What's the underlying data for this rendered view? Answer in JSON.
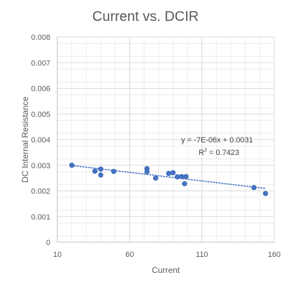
{
  "chart_data": {
    "type": "scatter",
    "title": "Current vs. DCIR",
    "xlabel": "Current",
    "ylabel": "DC Internal Resistance",
    "xlim": [
      10,
      160
    ],
    "ylim": [
      0,
      0.008
    ],
    "x_ticks": [
      "10",
      "60",
      "110",
      "160"
    ],
    "y_ticks": [
      "0",
      "0.001",
      "0.002",
      "0.003",
      "0.004",
      "0.005",
      "0.006",
      "0.007",
      "0.008"
    ],
    "grid": true,
    "marker_color": "#4472C4",
    "series": [
      {
        "points": [
          {
            "x": 20,
            "y": 0.003
          },
          {
            "x": 36,
            "y": 0.00277
          },
          {
            "x": 40,
            "y": 0.00285
          },
          {
            "x": 40,
            "y": 0.00262
          },
          {
            "x": 49,
            "y": 0.00276
          },
          {
            "x": 72,
            "y": 0.00287
          },
          {
            "x": 72,
            "y": 0.00275
          },
          {
            "x": 78,
            "y": 0.0025
          },
          {
            "x": 87,
            "y": 0.00268
          },
          {
            "x": 90,
            "y": 0.00271
          },
          {
            "x": 93,
            "y": 0.00255
          },
          {
            "x": 96,
            "y": 0.00256
          },
          {
            "x": 98,
            "y": 0.00228
          },
          {
            "x": 99,
            "y": 0.00256
          },
          {
            "x": 146,
            "y": 0.00213
          },
          {
            "x": 154,
            "y": 0.0019
          }
        ]
      }
    ],
    "trendline": {
      "type": "linear",
      "equation": "y = -7E-06x + 0.0031",
      "r2_prefix": "R",
      "r2_sup": "2",
      "r2_suffix": " = 0.7423",
      "x_from": 20,
      "x_to": 154,
      "color": "#4472C4"
    }
  }
}
